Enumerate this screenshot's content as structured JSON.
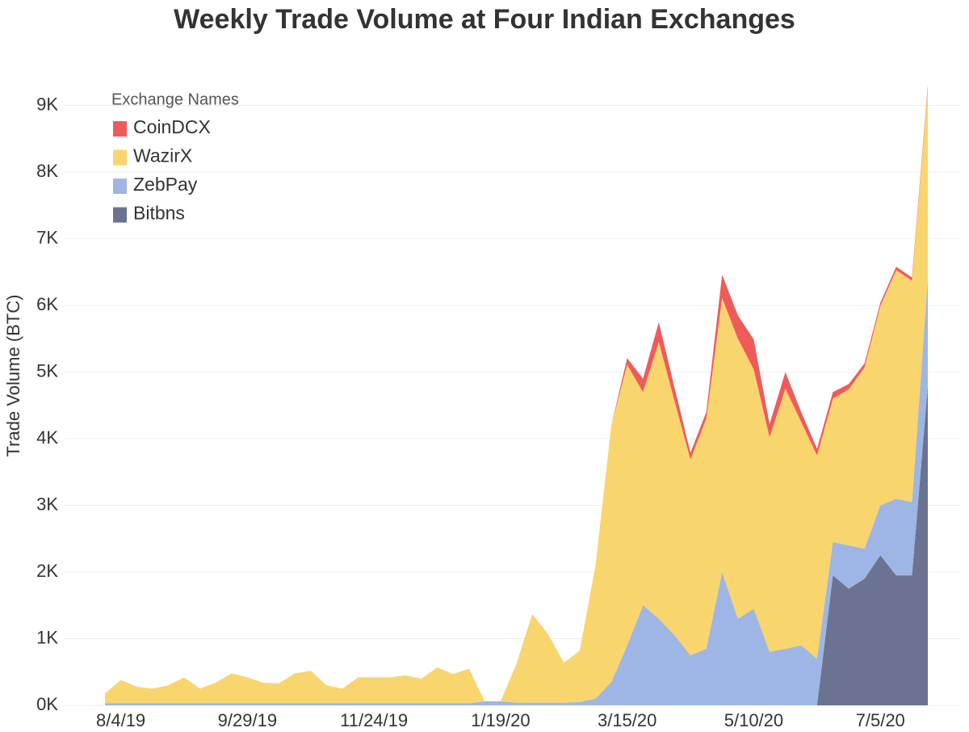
{
  "chart_data": {
    "type": "stacked_area",
    "title": "Weekly Trade Volume at Four Indian Exchanges",
    "y_label": "Trade Volume (BTC)",
    "legend_title": "Exchange Names",
    "legend": "upper left",
    "grid": true,
    "categories": [
      null,
      "8/4/19",
      null,
      null,
      null,
      null,
      null,
      null,
      null,
      "9/29/19",
      null,
      null,
      null,
      null,
      null,
      null,
      null,
      "11/24/19",
      null,
      null,
      null,
      null,
      null,
      null,
      null,
      "1/19/20",
      null,
      null,
      null,
      null,
      null,
      null,
      null,
      "3/15/20",
      null,
      null,
      null,
      null,
      null,
      null,
      null,
      "5/10/20",
      null,
      null,
      null,
      null,
      null,
      null,
      null,
      "7/5/20",
      null,
      null,
      null
    ],
    "ylim": [
      0,
      9400
    ],
    "yticks": [
      {
        "value": 0,
        "label": "0K"
      },
      {
        "value": 1000,
        "label": "1K"
      },
      {
        "value": 2000,
        "label": "2K"
      },
      {
        "value": 3000,
        "label": "3K"
      },
      {
        "value": 4000,
        "label": "4K"
      },
      {
        "value": 5000,
        "label": "5K"
      },
      {
        "value": 6000,
        "label": "6K"
      },
      {
        "value": 7000,
        "label": "7K"
      },
      {
        "value": 8000,
        "label": "8K"
      },
      {
        "value": 9000,
        "label": "9K"
      }
    ],
    "series": [
      {
        "name": "CoinDCX",
        "color": "#ef5b5b",
        "values": [
          0,
          0,
          0,
          0,
          0,
          0,
          0,
          0,
          0,
          0,
          0,
          0,
          0,
          0,
          0,
          0,
          0,
          0,
          0,
          0,
          0,
          0,
          0,
          0,
          0,
          0,
          0,
          0,
          0,
          0,
          0,
          0,
          0,
          100,
          200,
          300,
          200,
          100,
          100,
          350,
          350,
          450,
          200,
          250,
          150,
          100,
          100,
          80,
          60,
          50,
          50,
          50,
          50
        ]
      },
      {
        "name": "WazirX",
        "color": "#f9d56e",
        "values": [
          150,
          350,
          250,
          220,
          270,
          390,
          220,
          310,
          450,
          390,
          310,
          300,
          450,
          490,
          270,
          220,
          390,
          390,
          390,
          420,
          370,
          540,
          440,
          520,
          0,
          0,
          580,
          1330,
          1030,
          600,
          770,
          2000,
          3850,
          4210,
          3200,
          4150,
          3510,
          2940,
          3450,
          4110,
          4200,
          3590,
          3220,
          3900,
          3350,
          3050,
          2150,
          2340,
          2720,
          2990,
          3430,
          3320,
          2850
        ]
      },
      {
        "name": "ZebPay",
        "color": "#9db6e6",
        "values": [
          30,
          30,
          30,
          30,
          30,
          30,
          30,
          30,
          30,
          30,
          30,
          30,
          30,
          30,
          30,
          30,
          30,
          30,
          30,
          30,
          30,
          30,
          30,
          30,
          60,
          60,
          40,
          40,
          40,
          40,
          50,
          100,
          350,
          900,
          1500,
          1300,
          1050,
          750,
          850,
          2000,
          1300,
          1450,
          800,
          850,
          900,
          700,
          500,
          650,
          450,
          750,
          1150,
          1100,
          1600
        ]
      },
      {
        "name": "Bitbns",
        "color": "#6b7390",
        "values": [
          0,
          0,
          0,
          0,
          0,
          0,
          0,
          0,
          0,
          0,
          0,
          0,
          0,
          0,
          0,
          0,
          0,
          0,
          0,
          0,
          0,
          0,
          0,
          0,
          0,
          0,
          0,
          0,
          0,
          0,
          0,
          0,
          0,
          0,
          0,
          0,
          0,
          0,
          0,
          0,
          0,
          0,
          0,
          0,
          0,
          0,
          1950,
          1750,
          1900,
          2250,
          1950,
          1950,
          4800
        ]
      }
    ]
  }
}
